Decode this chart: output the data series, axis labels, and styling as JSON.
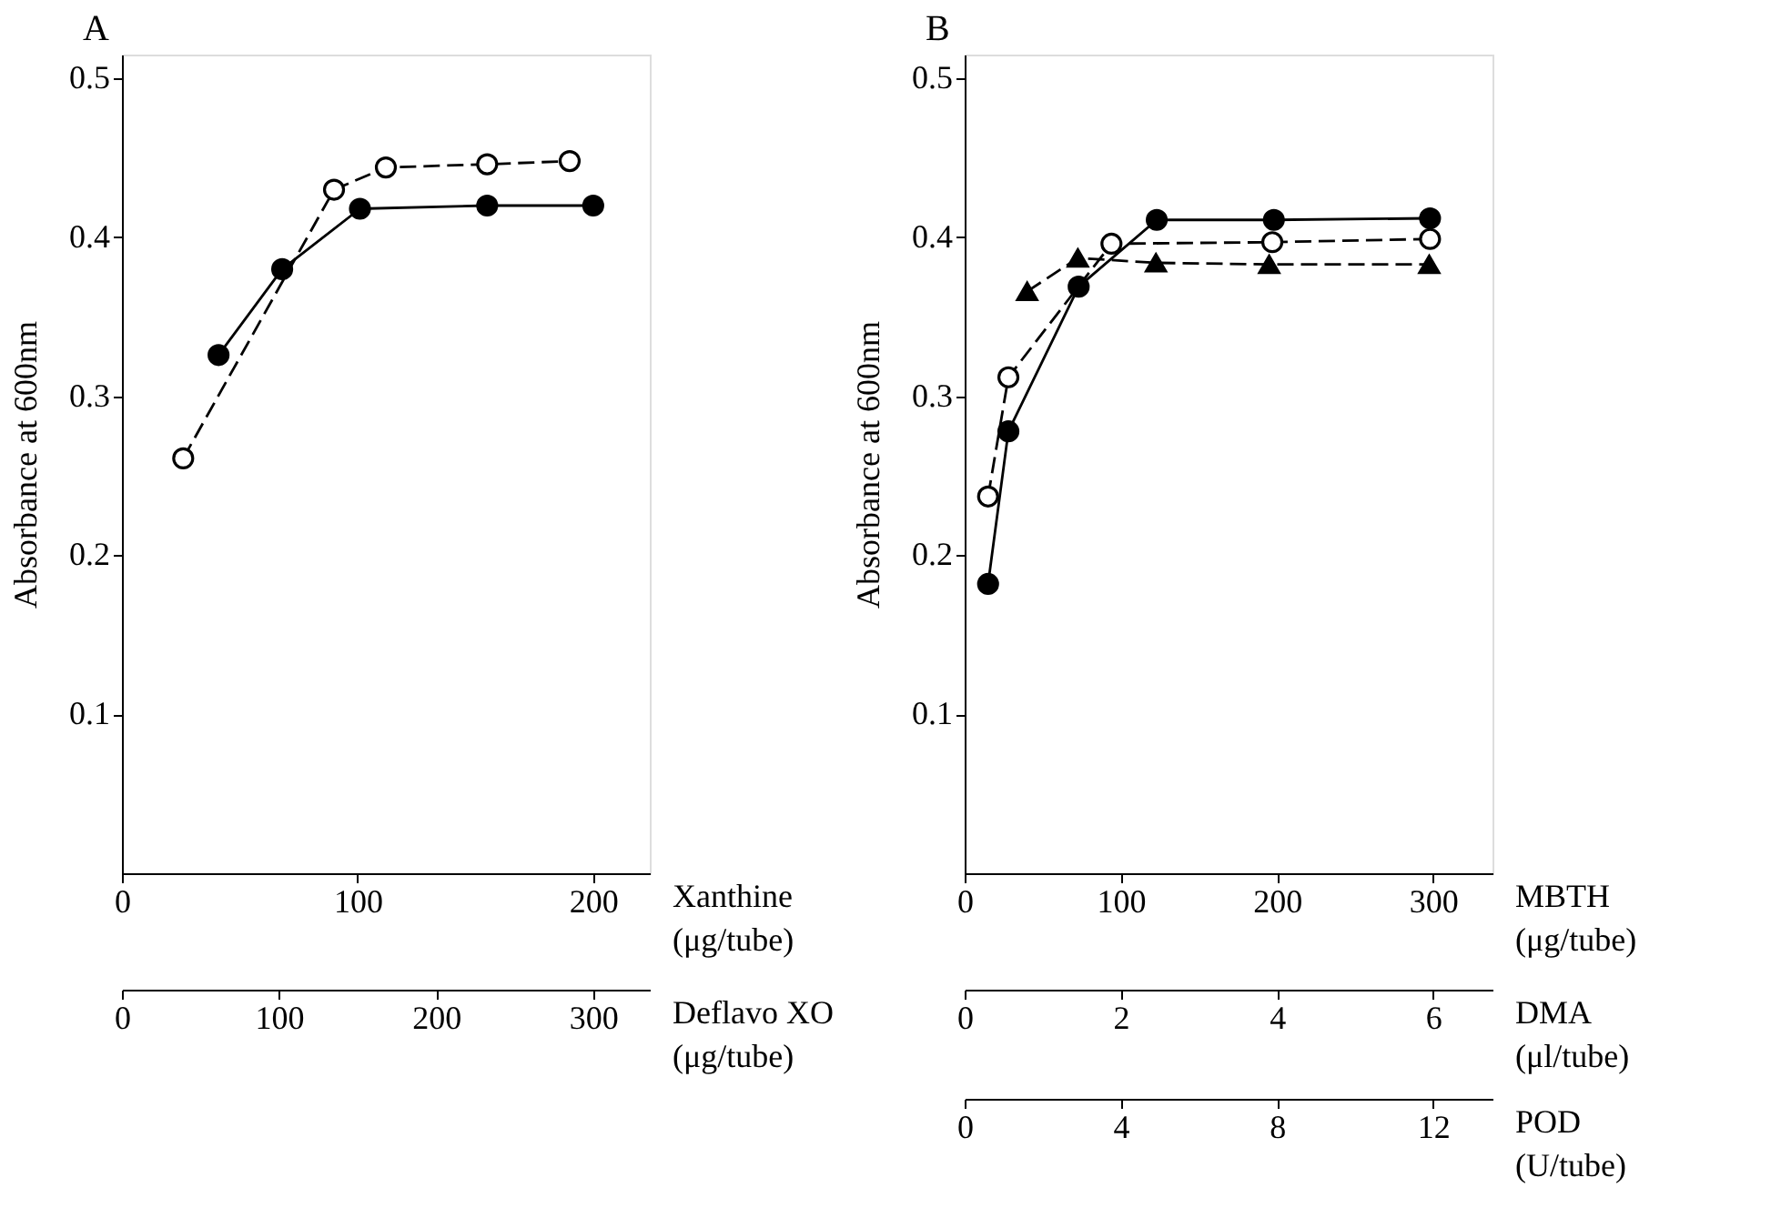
{
  "chart_data": [
    {
      "type": "line",
      "title": "A",
      "ylabel": "Absorbance at 600nm",
      "ylim": [
        0,
        0.515
      ],
      "yticks": [
        0.1,
        0.2,
        0.3,
        0.4,
        0.5
      ],
      "xlim": [
        0,
        224
      ],
      "xticks": [
        0,
        100,
        200
      ],
      "xlabel": "Xanthine\n(μg/tube)",
      "x2lim": [
        0,
        336
      ],
      "x2ticks": [
        0,
        100,
        200,
        300
      ],
      "x2label": "Deflavo XO\n(μg/tube)",
      "grid": false,
      "series": [
        {
          "color": "#000000",
          "colors": [
            "#ffffff",
            "#ffffff",
            "#ffffff",
            "#ffffff",
            "#ffffff"
          ],
          "marker": "circle",
          "line_style": "dashed",
          "x": [
            26,
            90,
            112,
            155,
            190
          ],
          "values": [
            0.261,
            0.43,
            0.444,
            0.446,
            0.448
          ]
        },
        {
          "color": "#000000",
          "marker": "circle",
          "line_style": "solid",
          "x": [
            41,
            68,
            101,
            155,
            200
          ],
          "values": [
            0.326,
            0.38,
            0.418,
            0.42,
            0.42
          ]
        }
      ]
    },
    {
      "type": "line",
      "title": "B",
      "ylabel": "Absorbance at 600nm",
      "ylim": [
        0,
        0.515
      ],
      "yticks": [
        0.1,
        0.2,
        0.3,
        0.4,
        0.5
      ],
      "xlim": [
        0,
        338
      ],
      "xticks": [
        0,
        100,
        200,
        300
      ],
      "xlabel": "MBTH\n(μg/tube)",
      "x2lim": [
        0,
        6.76
      ],
      "x2ticks": [
        0,
        2,
        4,
        6
      ],
      "x2label": "DMA\n(μl/tube)",
      "grid": false,
      "series": [
        {
          "color": "#000000",
          "marker": "circle",
          "line_style": "solid",
          "x": [
            15,
            28,
            73,
            123,
            198,
            298
          ],
          "values": [
            0.182,
            0.278,
            0.369,
            0.411,
            0.411,
            0.412
          ]
        },
        {
          "color": "#000000",
          "colors": [
            "#ffffff",
            "#ffffff",
            "#ffffff",
            "#ffffff",
            "#ffffff"
          ],
          "marker": "circle",
          "line_style": "dashed",
          "x": [
            15,
            28,
            94,
            197,
            298
          ],
          "values": [
            0.237,
            0.312,
            0.396,
            0.397,
            0.399
          ]
        }
      ]
    },
    {
      "type": "line",
      "ylim": [
        0,
        0.515
      ],
      "yticks": [
        0.1,
        0.2,
        0.3,
        0.4,
        0.5
      ],
      "xlim": [
        0,
        13.52
      ],
      "xticks": [
        0,
        4,
        8,
        12
      ],
      "xlabel": "POD\n(U/tube)",
      "tick_labels": "x",
      "series": [
        {
          "color": "#000000",
          "marker": "triangle",
          "line_style": "dashed",
          "x": [
            1.6,
            2.9,
            4.9,
            7.8,
            11.9
          ],
          "values": [
            0.366,
            0.387,
            0.384,
            0.383,
            0.383
          ]
        }
      ]
    }
  ]
}
